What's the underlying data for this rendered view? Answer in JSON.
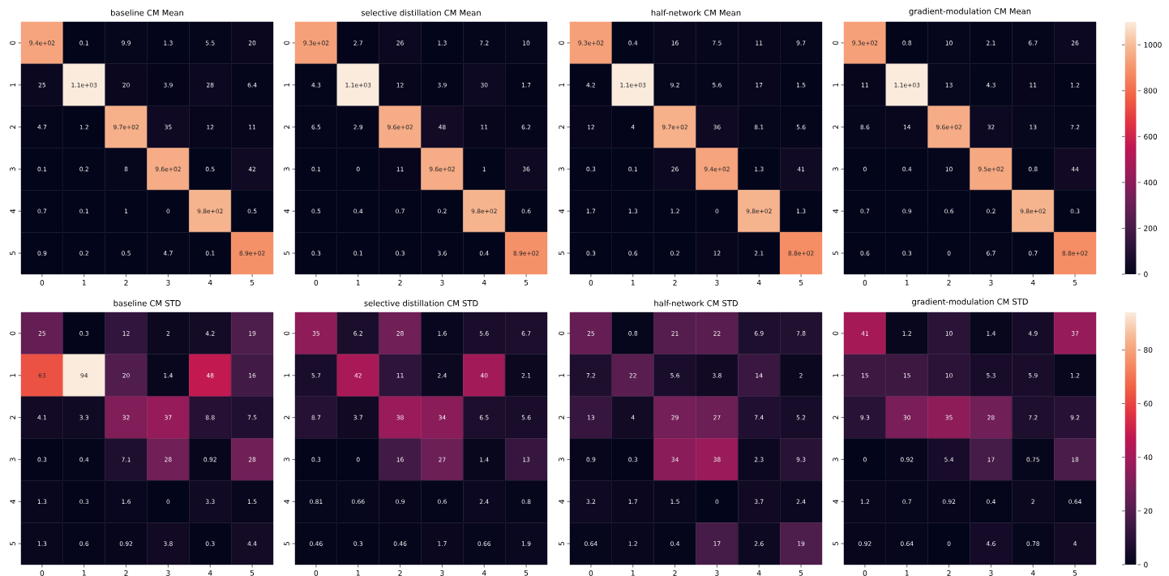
{
  "chart_data": [
    {
      "type": "heatmap",
      "title": "baseline CM Mean",
      "categories": [
        "0",
        "1",
        "2",
        "3",
        "4",
        "5"
      ],
      "y_categories": [
        "0",
        "1",
        "2",
        "3",
        "4",
        "5"
      ],
      "cells": [
        [
          940,
          0.1,
          9.9,
          1.3,
          5.5,
          20
        ],
        [
          25,
          1100,
          20,
          3.9,
          28,
          6.4
        ],
        [
          4.7,
          1.2,
          970,
          35,
          12,
          11
        ],
        [
          0.1,
          0.2,
          8,
          960,
          0.5,
          42
        ],
        [
          0.7,
          0.1,
          1,
          0,
          980,
          0.5
        ],
        [
          0.9,
          0.2,
          0.5,
          4.7,
          0.1,
          890
        ]
      ],
      "cell_labels": [
        [
          "9.4e+02",
          "0.1",
          "9.9",
          "1.3",
          "5.5",
          "20"
        ],
        [
          "25",
          "1.1e+03",
          "20",
          "3.9",
          "28",
          "6.4"
        ],
        [
          "4.7",
          "1.2",
          "9.7e+02",
          "35",
          "12",
          "11"
        ],
        [
          "0.1",
          "0.2",
          "8",
          "9.6e+02",
          "0.5",
          "42"
        ],
        [
          "0.7",
          "0.1",
          "1",
          "0",
          "9.8e+02",
          "0.5"
        ],
        [
          "0.9",
          "0.2",
          "0.5",
          "4.7",
          "0.1",
          "8.9e+02"
        ]
      ]
    },
    {
      "type": "heatmap",
      "title": "selective distillation CM Mean",
      "categories": [
        "0",
        "1",
        "2",
        "3",
        "4",
        "5"
      ],
      "y_categories": [
        "0",
        "1",
        "2",
        "3",
        "4",
        "5"
      ],
      "cells": [
        [
          930,
          2.7,
          26,
          1.3,
          7.2,
          10
        ],
        [
          4.3,
          1100,
          12,
          3.9,
          30,
          1.7
        ],
        [
          6.5,
          2.9,
          960,
          48,
          11,
          6.2
        ],
        [
          0.1,
          0,
          11,
          960,
          1,
          36
        ],
        [
          0.5,
          0.4,
          0.7,
          0.2,
          980,
          0.6
        ],
        [
          0.3,
          0.1,
          0.3,
          3.6,
          0.4,
          890
        ]
      ],
      "cell_labels": [
        [
          "9.3e+02",
          "2.7",
          "26",
          "1.3",
          "7.2",
          "10"
        ],
        [
          "4.3",
          "1.1e+03",
          "12",
          "3.9",
          "30",
          "1.7"
        ],
        [
          "6.5",
          "2.9",
          "9.6e+02",
          "48",
          "11",
          "6.2"
        ],
        [
          "0.1",
          "0",
          "11",
          "9.6e+02",
          "1",
          "36"
        ],
        [
          "0.5",
          "0.4",
          "0.7",
          "0.2",
          "9.8e+02",
          "0.6"
        ],
        [
          "0.3",
          "0.1",
          "0.3",
          "3.6",
          "0.4",
          "8.9e+02"
        ]
      ]
    },
    {
      "type": "heatmap",
      "title": "half-network CM Mean",
      "categories": [
        "0",
        "1",
        "2",
        "3",
        "4",
        "5"
      ],
      "y_categories": [
        "0",
        "1",
        "2",
        "3",
        "4",
        "5"
      ],
      "cells": [
        [
          930,
          0.4,
          16,
          7.5,
          11,
          9.7
        ],
        [
          4.2,
          1100,
          9.2,
          5.6,
          17,
          1.5
        ],
        [
          12,
          4,
          970,
          36,
          8.1,
          5.6
        ],
        [
          0.3,
          0.1,
          26,
          940,
          1.3,
          41
        ],
        [
          1.7,
          1.3,
          1.2,
          0,
          980,
          1.3
        ],
        [
          0.3,
          0.6,
          0.2,
          12,
          2.1,
          880
        ]
      ],
      "cell_labels": [
        [
          "9.3e+02",
          "0.4",
          "16",
          "7.5",
          "11",
          "9.7"
        ],
        [
          "4.2",
          "1.1e+03",
          "9.2",
          "5.6",
          "17",
          "1.5"
        ],
        [
          "12",
          "4",
          "9.7e+02",
          "36",
          "8.1",
          "5.6"
        ],
        [
          "0.3",
          "0.1",
          "26",
          "9.4e+02",
          "1.3",
          "41"
        ],
        [
          "1.7",
          "1.3",
          "1.2",
          "0",
          "9.8e+02",
          "1.3"
        ],
        [
          "0.3",
          "0.6",
          "0.2",
          "12",
          "2.1",
          "8.8e+02"
        ]
      ]
    },
    {
      "type": "heatmap",
      "title": "gradient-modulation CM Mean",
      "categories": [
        "0",
        "1",
        "2",
        "3",
        "4",
        "5"
      ],
      "y_categories": [
        "0",
        "1",
        "2",
        "3",
        "4",
        "5"
      ],
      "clim": [
        0,
        1100
      ],
      "cticks": [
        0,
        200,
        400,
        600,
        800,
        1000
      ],
      "cells": [
        [
          930,
          0.8,
          10,
          2.1,
          6.7,
          26
        ],
        [
          11,
          1100,
          13,
          4.3,
          11,
          1.2
        ],
        [
          8.6,
          14,
          960,
          32,
          13,
          7.2
        ],
        [
          0,
          0.4,
          10,
          950,
          0.8,
          44
        ],
        [
          0.7,
          0.9,
          0.6,
          0.2,
          980,
          0.3
        ],
        [
          0.6,
          0.3,
          0,
          6.7,
          0.7,
          880
        ]
      ],
      "cell_labels": [
        [
          "9.3e+02",
          "0.8",
          "10",
          "2.1",
          "6.7",
          "26"
        ],
        [
          "11",
          "1.1e+03",
          "13",
          "4.3",
          "11",
          "1.2"
        ],
        [
          "8.6",
          "14",
          "9.6e+02",
          "32",
          "13",
          "7.2"
        ],
        [
          "0",
          "0.4",
          "10",
          "9.5e+02",
          "0.8",
          "44"
        ],
        [
          "0.7",
          "0.9",
          "0.6",
          "0.2",
          "9.8e+02",
          "0.3"
        ],
        [
          "0.6",
          "0.3",
          "0",
          "6.7",
          "0.7",
          "8.8e+02"
        ]
      ]
    },
    {
      "type": "heatmap",
      "title": "baseline CM STD",
      "categories": [
        "0",
        "1",
        "2",
        "3",
        "4",
        "5"
      ],
      "y_categories": [
        "0",
        "1",
        "2",
        "3",
        "4",
        "5"
      ],
      "cells": [
        [
          25,
          0.3,
          12,
          2,
          4.2,
          19
        ],
        [
          63,
          94,
          20,
          1.4,
          48,
          16
        ],
        [
          4.1,
          3.3,
          32,
          37,
          8.8,
          7.5
        ],
        [
          0.3,
          0.4,
          7.1,
          28,
          0.92,
          28
        ],
        [
          1.3,
          0.3,
          1.6,
          0,
          3.3,
          1.5
        ],
        [
          1.3,
          0.6,
          0.92,
          3.8,
          0.3,
          4.4
        ]
      ],
      "cell_labels": [
        [
          "25",
          "0.3",
          "12",
          "2",
          "4.2",
          "19"
        ],
        [
          "63",
          "94",
          "20",
          "1.4",
          "48",
          "16"
        ],
        [
          "4.1",
          "3.3",
          "32",
          "37",
          "8.8",
          "7.5"
        ],
        [
          "0.3",
          "0.4",
          "7.1",
          "28",
          "0.92",
          "28"
        ],
        [
          "1.3",
          "0.3",
          "1.6",
          "0",
          "3.3",
          "1.5"
        ],
        [
          "1.3",
          "0.6",
          "0.92",
          "3.8",
          "0.3",
          "4.4"
        ]
      ]
    },
    {
      "type": "heatmap",
      "title": "selective distillation CM STD",
      "categories": [
        "0",
        "1",
        "2",
        "3",
        "4",
        "5"
      ],
      "y_categories": [
        "0",
        "1",
        "2",
        "3",
        "4",
        "5"
      ],
      "cells": [
        [
          35,
          6.2,
          28,
          1.6,
          5.6,
          6.7
        ],
        [
          5.7,
          42,
          11,
          2.4,
          40,
          2.1
        ],
        [
          8.7,
          3.7,
          38,
          34,
          6.5,
          5.6
        ],
        [
          0.3,
          0,
          16,
          27,
          1.4,
          13
        ],
        [
          0.81,
          0.66,
          0.9,
          0.6,
          2.4,
          0.8
        ],
        [
          0.46,
          0.3,
          0.46,
          1.7,
          0.66,
          1.9
        ]
      ],
      "cell_labels": [
        [
          "35",
          "6.2",
          "28",
          "1.6",
          "5.6",
          "6.7"
        ],
        [
          "5.7",
          "42",
          "11",
          "2.4",
          "40",
          "2.1"
        ],
        [
          "8.7",
          "3.7",
          "38",
          "34",
          "6.5",
          "5.6"
        ],
        [
          "0.3",
          "0",
          "16",
          "27",
          "1.4",
          "13"
        ],
        [
          "0.81",
          "0.66",
          "0.9",
          "0.6",
          "2.4",
          "0.8"
        ],
        [
          "0.46",
          "0.3",
          "0.46",
          "1.7",
          "0.66",
          "1.9"
        ]
      ]
    },
    {
      "type": "heatmap",
      "title": "half-network CM STD",
      "categories": [
        "0",
        "1",
        "2",
        "3",
        "4",
        "5"
      ],
      "y_categories": [
        "0",
        "1",
        "2",
        "3",
        "4",
        "5"
      ],
      "cells": [
        [
          25,
          0.8,
          21,
          22,
          6.9,
          7.8
        ],
        [
          7.2,
          22,
          5.6,
          3.8,
          14,
          2
        ],
        [
          13,
          4,
          29,
          27,
          7.4,
          5.2
        ],
        [
          0.9,
          0.3,
          34,
          38,
          2.3,
          9.3
        ],
        [
          3.2,
          1.7,
          1.5,
          0,
          3.7,
          2.4
        ],
        [
          0.64,
          1.2,
          0.4,
          17,
          2.6,
          19
        ]
      ],
      "cell_labels": [
        [
          "25",
          "0.8",
          "21",
          "22",
          "6.9",
          "7.8"
        ],
        [
          "7.2",
          "22",
          "5.6",
          "3.8",
          "14",
          "2"
        ],
        [
          "13",
          "4",
          "29",
          "27",
          "7.4",
          "5.2"
        ],
        [
          "0.9",
          "0.3",
          "34",
          "38",
          "2.3",
          "9.3"
        ],
        [
          "3.2",
          "1.7",
          "1.5",
          "0",
          "3.7",
          "2.4"
        ],
        [
          "0.64",
          "1.2",
          "0.4",
          "17",
          "2.6",
          "19"
        ]
      ]
    },
    {
      "type": "heatmap",
      "title": "gradient-modulation CM STD",
      "categories": [
        "0",
        "1",
        "2",
        "3",
        "4",
        "5"
      ],
      "y_categories": [
        "0",
        "1",
        "2",
        "3",
        "4",
        "5"
      ],
      "clim": [
        0,
        94
      ],
      "cticks": [
        0,
        20,
        40,
        60,
        80
      ],
      "cells": [
        [
          41,
          1.2,
          10,
          1.4,
          4.9,
          37
        ],
        [
          15,
          15,
          10,
          5.3,
          5.9,
          1.2
        ],
        [
          9.3,
          30,
          35,
          28,
          7.2,
          9.2
        ],
        [
          0,
          0.92,
          5.4,
          17,
          0.75,
          18
        ],
        [
          1.2,
          0.7,
          0.92,
          0.4,
          2,
          0.64
        ],
        [
          0.92,
          0.64,
          0,
          4.6,
          0.78,
          4
        ]
      ],
      "cell_labels": [
        [
          "41",
          "1.2",
          "10",
          "1.4",
          "4.9",
          "37"
        ],
        [
          "15",
          "15",
          "10",
          "5.3",
          "5.9",
          "1.2"
        ],
        [
          "9.3",
          "30",
          "35",
          "28",
          "7.2",
          "9.2"
        ],
        [
          "0",
          "0.92",
          "5.4",
          "17",
          "0.75",
          "18"
        ],
        [
          "1.2",
          "0.7",
          "0.92",
          "0.4",
          "2",
          "0.64"
        ],
        [
          "0.92",
          "0.64",
          "0",
          "4.6",
          "0.78",
          "4"
        ]
      ]
    }
  ]
}
